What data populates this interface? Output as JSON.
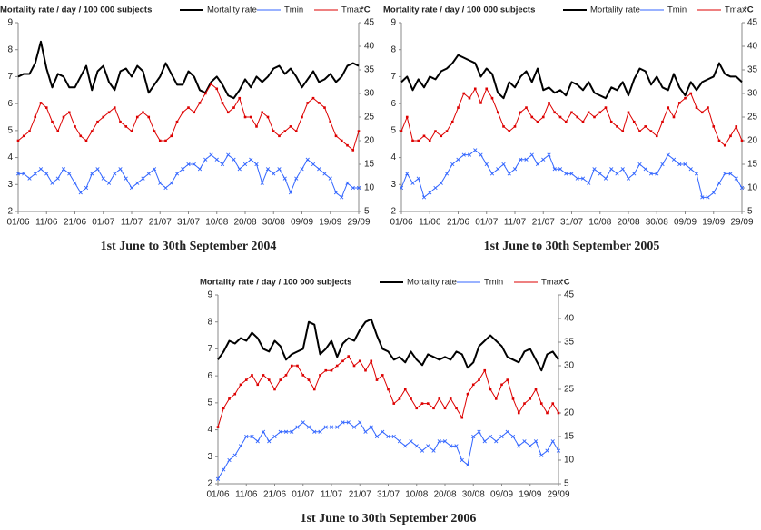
{
  "chart_data": [
    {
      "type": "line",
      "title": "Mortality rate / day / 100 000 subjects",
      "y2_label": "°C",
      "caption": "1st June to 30th September 2004",
      "categories": [
        "01/06",
        null,
        null,
        null,
        null,
        "11/06",
        null,
        null,
        null,
        null,
        "21/06",
        null,
        null,
        null,
        null,
        "01/07",
        null,
        null,
        null,
        null,
        "11/07",
        null,
        null,
        null,
        null,
        "21/07",
        null,
        null,
        null,
        null,
        "31/07",
        null,
        null,
        null,
        null,
        "10/08",
        null,
        null,
        null,
        null,
        "20/08",
        null,
        null,
        null,
        null,
        "30/08",
        null,
        null,
        null,
        null,
        "09/09",
        null,
        null,
        null,
        null,
        "19/09",
        null,
        null,
        null,
        null,
        "29/09"
      ],
      "ylim": [
        2,
        9
      ],
      "yticks": [
        2,
        3,
        4,
        5,
        6,
        7,
        8,
        9
      ],
      "y2lim": [
        5,
        45
      ],
      "y2ticks": [
        5,
        10,
        15,
        20,
        25,
        30,
        35,
        40,
        45
      ],
      "series": [
        {
          "name": "Mortality rate",
          "color": "#000000",
          "values": [
            7.0,
            7.1,
            7.1,
            7.5,
            8.3,
            7.3,
            6.6,
            7.1,
            7.0,
            6.6,
            6.6,
            7.0,
            7.4,
            6.5,
            7.2,
            7.4,
            6.8,
            6.5,
            7.2,
            7.3,
            7.0,
            7.4,
            7.2,
            6.4,
            6.7,
            7.0,
            7.5,
            7.1,
            6.7,
            6.7,
            7.2,
            7.0,
            6.5,
            6.4,
            6.8,
            7.0,
            6.7,
            6.3,
            6.2,
            6.5,
            6.9,
            6.6,
            7.0,
            6.8,
            7.0,
            7.3,
            7.4,
            7.1,
            7.3,
            7.0,
            6.6,
            6.9,
            7.2,
            6.8,
            6.9,
            7.1,
            6.8,
            7.0,
            7.4,
            7.5,
            7.4
          ]
        },
        {
          "name": "Tmin",
          "color": "#3366ff",
          "axis": "y2",
          "values": [
            13,
            13,
            12,
            13,
            14,
            13,
            11,
            12,
            14,
            13,
            11,
            9,
            10,
            13,
            14,
            12,
            11,
            13,
            14,
            12,
            10,
            11,
            12,
            13,
            14,
            11,
            10,
            11,
            13,
            14,
            15,
            15,
            14,
            16,
            17,
            16,
            15,
            17,
            16,
            14,
            15,
            16,
            15,
            11,
            14,
            13,
            14,
            12,
            9,
            12,
            14,
            16,
            15,
            14,
            13,
            12,
            9,
            8,
            11,
            10,
            10
          ]
        },
        {
          "name": "Tmax",
          "color": "#dd0000",
          "axis": "y2",
          "values": [
            20,
            21,
            22,
            25,
            28,
            27,
            24,
            22,
            25,
            26,
            23,
            21,
            20,
            22,
            24,
            25,
            26,
            27,
            24,
            23,
            22,
            25,
            26,
            25,
            22,
            20,
            20,
            21,
            24,
            26,
            27,
            26,
            28,
            30,
            32,
            31,
            28,
            26,
            27,
            29,
            25,
            25,
            23,
            26,
            25,
            22,
            21,
            22,
            23,
            22,
            25,
            28,
            29,
            28,
            27,
            24,
            21,
            20,
            19,
            18,
            22
          ]
        }
      ]
    },
    {
      "type": "line",
      "title": "Mortality rate / day / 100 000 subjects",
      "y2_label": "°C",
      "caption": "1st June to 30th September 2005",
      "categories": [
        "01/06",
        null,
        null,
        null,
        null,
        "11/06",
        null,
        null,
        null,
        null,
        "21/06",
        null,
        null,
        null,
        null,
        "01/07",
        null,
        null,
        null,
        null,
        "11/07",
        null,
        null,
        null,
        null,
        "21/07",
        null,
        null,
        null,
        null,
        "31/07",
        null,
        null,
        null,
        null,
        "10/08",
        null,
        null,
        null,
        null,
        "20/08",
        null,
        null,
        null,
        null,
        "30/08",
        null,
        null,
        null,
        null,
        "09/09",
        null,
        null,
        null,
        null,
        "19/09",
        null,
        null,
        null,
        null,
        "29/09"
      ],
      "ylim": [
        2,
        9
      ],
      "yticks": [
        2,
        3,
        4,
        5,
        6,
        7,
        8,
        9
      ],
      "y2lim": [
        5,
        45
      ],
      "y2ticks": [
        5,
        10,
        15,
        20,
        25,
        30,
        35,
        40,
        45
      ],
      "series": [
        {
          "name": "Mortality rate",
          "color": "#000000",
          "values": [
            6.8,
            7.0,
            6.5,
            6.9,
            6.6,
            7.0,
            6.9,
            7.2,
            7.3,
            7.5,
            7.8,
            7.7,
            7.6,
            7.5,
            7.0,
            7.3,
            7.1,
            6.4,
            6.2,
            6.8,
            6.6,
            7.0,
            7.2,
            6.8,
            7.3,
            6.5,
            6.6,
            6.4,
            6.5,
            6.3,
            6.8,
            6.7,
            6.5,
            6.8,
            6.4,
            6.3,
            6.2,
            6.6,
            6.5,
            6.8,
            6.3,
            6.9,
            7.3,
            7.2,
            6.7,
            7.0,
            6.6,
            6.5,
            7.1,
            6.6,
            6.3,
            6.8,
            6.5,
            6.8,
            6.9,
            7.0,
            7.5,
            7.1,
            7.0,
            7.0,
            6.8
          ]
        },
        {
          "name": "Tmin",
          "color": "#3366ff",
          "axis": "y2",
          "values": [
            10,
            13,
            11,
            12,
            8,
            9,
            10,
            11,
            13,
            15,
            16,
            17,
            17,
            18,
            17,
            15,
            13,
            14,
            15,
            13,
            14,
            16,
            16,
            17,
            15,
            16,
            17,
            14,
            14,
            13,
            13,
            12,
            12,
            11,
            14,
            13,
            12,
            14,
            13,
            14,
            12,
            13,
            15,
            14,
            13,
            13,
            15,
            17,
            16,
            15,
            15,
            14,
            13,
            8,
            8,
            9,
            11,
            13,
            13,
            12,
            10
          ]
        },
        {
          "name": "Tmax",
          "color": "#dd0000",
          "axis": "y2",
          "values": [
            22,
            25,
            20,
            20,
            21,
            20,
            22,
            21,
            22,
            24,
            27,
            30,
            29,
            31,
            28,
            31,
            29,
            26,
            23,
            22,
            23,
            26,
            27,
            25,
            24,
            25,
            28,
            26,
            25,
            24,
            26,
            25,
            24,
            26,
            25,
            26,
            27,
            24,
            23,
            22,
            26,
            24,
            22,
            23,
            22,
            21,
            24,
            27,
            25,
            28,
            29,
            30,
            27,
            26,
            27,
            23,
            20,
            19,
            21,
            23,
            20
          ]
        }
      ]
    },
    {
      "type": "line",
      "title": "Mortality rate / day / 100 000 subjects",
      "y2_label": "°C",
      "caption": "1st June to 30th September 2006",
      "categories": [
        "01/06",
        null,
        null,
        null,
        null,
        "11/06",
        null,
        null,
        null,
        null,
        "21/06",
        null,
        null,
        null,
        null,
        "01/07",
        null,
        null,
        null,
        null,
        "11/07",
        null,
        null,
        null,
        null,
        "21/07",
        null,
        null,
        null,
        null,
        "31/07",
        null,
        null,
        null,
        null,
        "10/08",
        null,
        null,
        null,
        null,
        "20/08",
        null,
        null,
        null,
        null,
        "30/08",
        null,
        null,
        null,
        null,
        "09/09",
        null,
        null,
        null,
        null,
        "19/09",
        null,
        null,
        null,
        null,
        "29/09"
      ],
      "ylim": [
        2,
        9
      ],
      "yticks": [
        2,
        3,
        4,
        5,
        6,
        7,
        8,
        9
      ],
      "y2lim": [
        5,
        45
      ],
      "y2ticks": [
        5,
        10,
        15,
        20,
        25,
        30,
        35,
        40,
        45
      ],
      "series": [
        {
          "name": "Mortality rate",
          "color": "#000000",
          "values": [
            6.6,
            6.9,
            7.3,
            7.2,
            7.4,
            7.3,
            7.6,
            7.4,
            7.0,
            6.9,
            7.3,
            7.1,
            6.6,
            6.8,
            6.9,
            7.0,
            8.0,
            7.9,
            6.8,
            7.0,
            7.3,
            6.7,
            7.2,
            7.4,
            7.3,
            7.7,
            8.0,
            8.1,
            7.5,
            7.0,
            6.9,
            6.6,
            6.7,
            6.5,
            6.9,
            6.6,
            6.4,
            6.8,
            6.7,
            6.6,
            6.7,
            6.6,
            6.9,
            6.8,
            6.3,
            6.5,
            7.1,
            7.3,
            7.5,
            7.3,
            7.1,
            6.7,
            6.6,
            6.5,
            6.9,
            7.0,
            6.6,
            6.2,
            6.8,
            6.9,
            6.6
          ]
        },
        {
          "name": "Tmin",
          "color": "#3366ff",
          "axis": "y2",
          "values": [
            6,
            8,
            10,
            11,
            13,
            15,
            15,
            14,
            16,
            14,
            15,
            16,
            16,
            16,
            17,
            18,
            17,
            16,
            16,
            17,
            17,
            17,
            18,
            18,
            17,
            18,
            16,
            17,
            15,
            16,
            15,
            15,
            14,
            13,
            14,
            13,
            12,
            13,
            12,
            14,
            14,
            13,
            13,
            10,
            9,
            15,
            16,
            14,
            15,
            14,
            15,
            16,
            15,
            13,
            14,
            13,
            14,
            11,
            12,
            14,
            12
          ]
        },
        {
          "name": "Tmax",
          "color": "#dd0000",
          "axis": "y2",
          "values": [
            17,
            21,
            23,
            24,
            26,
            27,
            28,
            26,
            28,
            27,
            25,
            27,
            28,
            30,
            30,
            28,
            27,
            25,
            28,
            29,
            29,
            30,
            31,
            32,
            30,
            31,
            29,
            31,
            27,
            28,
            25,
            22,
            23,
            25,
            23,
            21,
            22,
            22,
            21,
            23,
            21,
            23,
            21,
            19,
            24,
            26,
            27,
            29,
            25,
            23,
            26,
            27,
            23,
            20,
            22,
            23,
            25,
            22,
            20,
            22,
            20
          ]
        }
      ]
    }
  ]
}
